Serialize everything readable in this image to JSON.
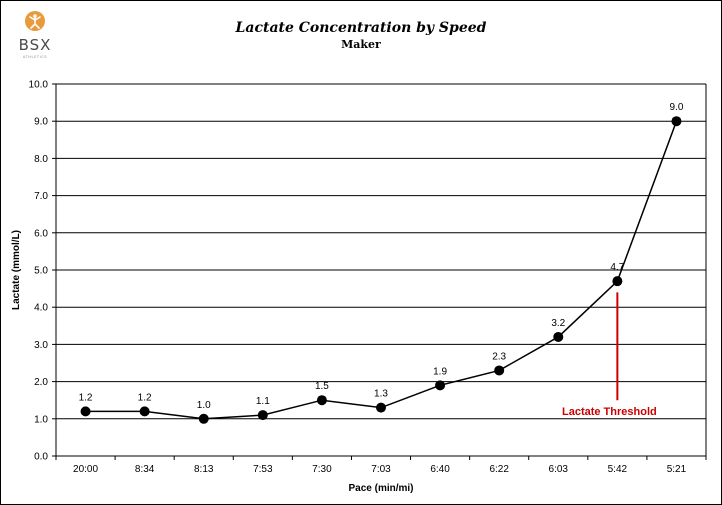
{
  "logo": {
    "text": "BSX",
    "subtext": "ATHLETICS",
    "color": "#e89a3c"
  },
  "chart_data": {
    "type": "line",
    "title": "Lactate Concentration by Speed",
    "subtitle": "Maker",
    "xlabel": "Pace (min/mi)",
    "ylabel": "Lactate (mmol/L)",
    "categories": [
      "20:00",
      "8:34",
      "8:13",
      "7:53",
      "7:30",
      "7:03",
      "6:40",
      "6:22",
      "6:03",
      "5:42",
      "5:21"
    ],
    "series": [
      {
        "values": [
          1.2,
          1.2,
          1.0,
          1.1,
          1.5,
          1.3,
          1.9,
          2.3,
          3.2,
          4.7,
          9.0
        ],
        "data_labels": [
          "1.2",
          "1.2",
          "1.0",
          "1.1",
          "1.5",
          "1.3",
          "1.9",
          "2.3",
          "3.2",
          "4.7",
          "9.0"
        ],
        "color": "#000000"
      }
    ],
    "ylim": [
      0,
      10
    ],
    "yticks": [
      "0.0",
      "1.0",
      "2.0",
      "3.0",
      "4.0",
      "5.0",
      "6.0",
      "7.0",
      "8.0",
      "9.0",
      "10.0"
    ],
    "grid": "horizontal",
    "annotation": {
      "text": "Lactate Threshold",
      "category": "5:42",
      "from_value": 1.5,
      "to_value": 4.4,
      "color": "#cc0000"
    }
  }
}
